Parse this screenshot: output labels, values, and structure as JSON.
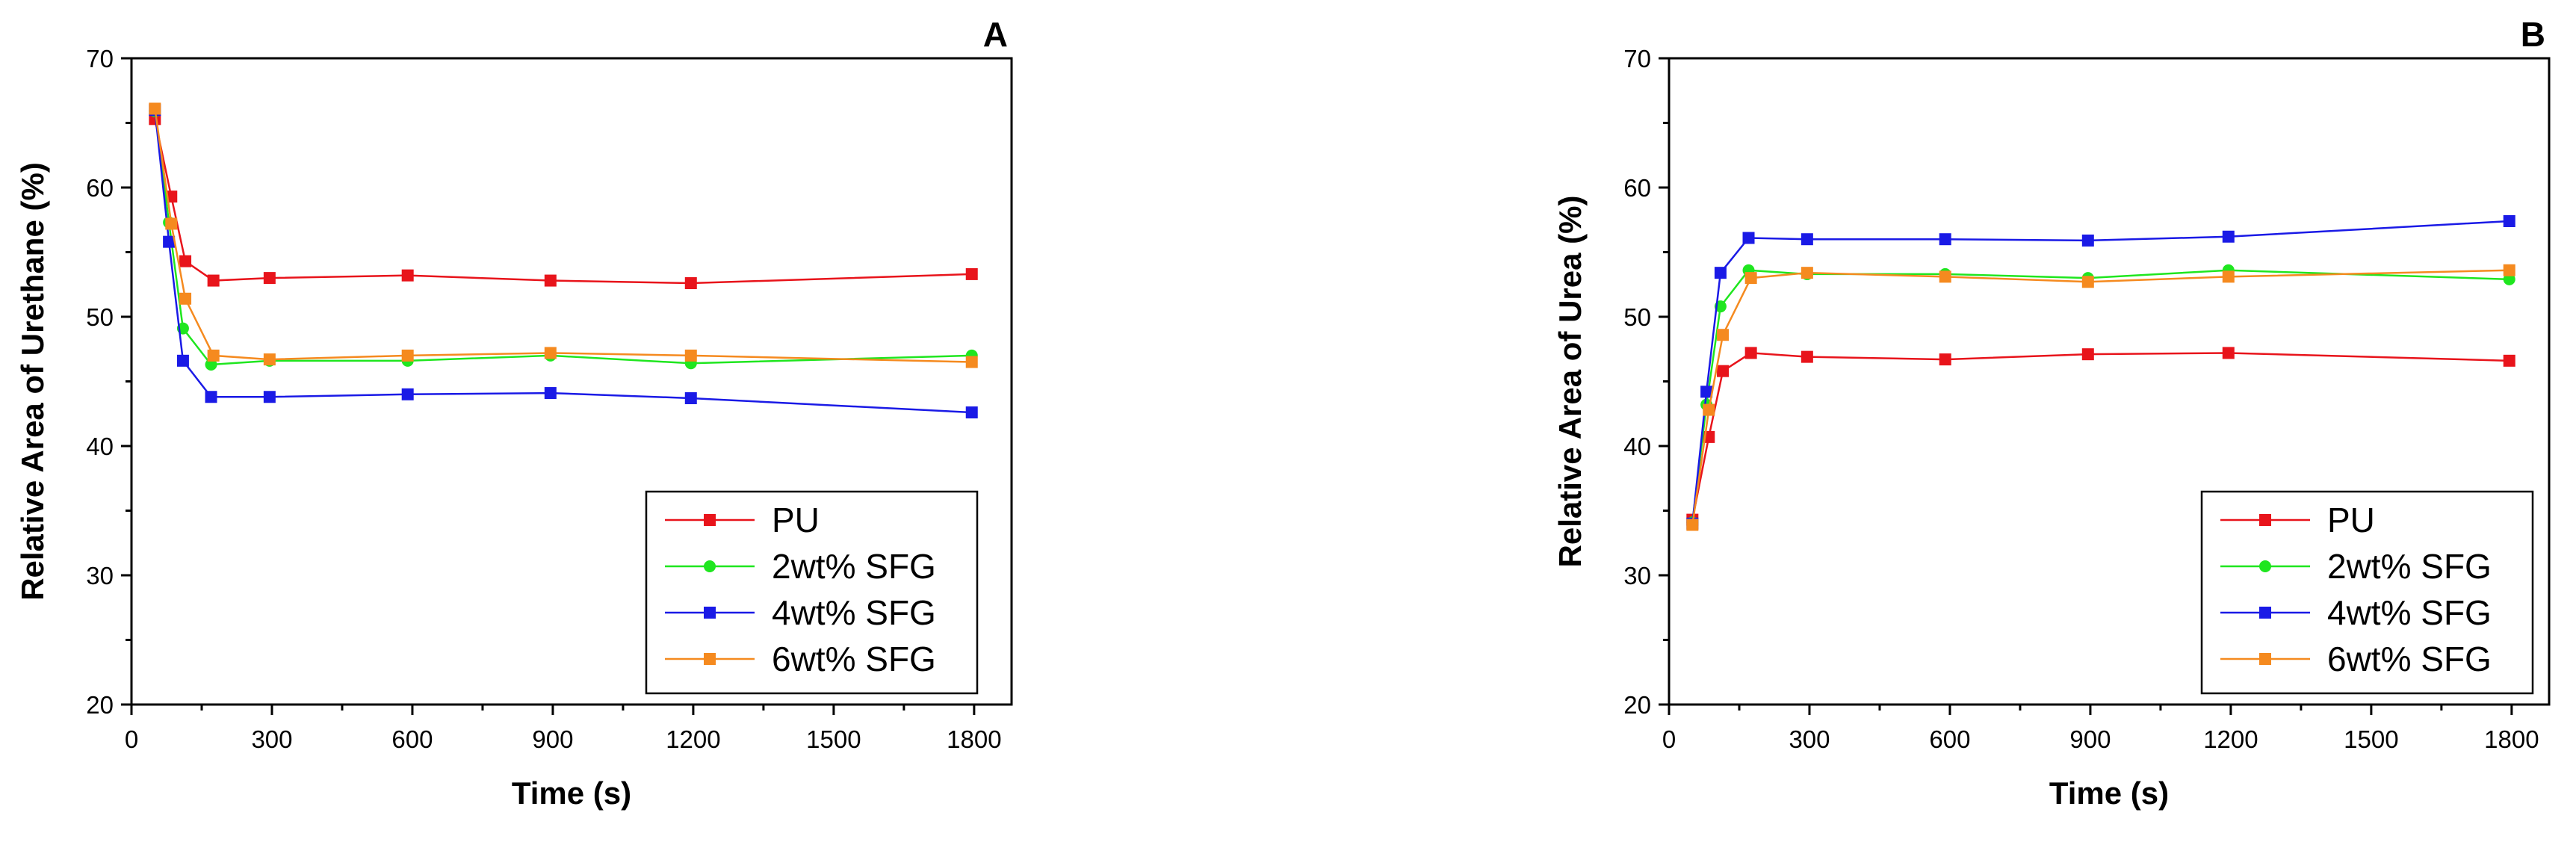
{
  "chart_data": [
    {
      "type": "line",
      "panel_label": "A",
      "xlabel": "Time (s)",
      "ylabel": "Relative Area of Urethane (%)",
      "xlim": [
        0,
        1880
      ],
      "ylim": [
        20,
        70
      ],
      "xticks": [
        "0",
        "300",
        "600",
        "900",
        "1200",
        "1500",
        "1800"
      ],
      "yticks": [
        "20",
        "30",
        "40",
        "50",
        "60",
        "70"
      ],
      "legend_position": "bottom-right",
      "series": [
        {
          "name": "PU",
          "color": "#e8141b",
          "marker": "square",
          "x": [
            50,
            85,
            115,
            175,
            295,
            590,
            895,
            1195,
            1795
          ],
          "y": [
            65.3,
            59.3,
            54.3,
            52.8,
            53.0,
            53.2,
            52.8,
            52.6,
            53.3
          ]
        },
        {
          "name": "2wt% SFG",
          "color": "#1fe61f",
          "marker": "circle",
          "x": [
            50,
            80,
            110,
            170,
            295,
            590,
            895,
            1195,
            1795
          ],
          "y": [
            65.9,
            57.3,
            49.1,
            46.3,
            46.6,
            46.6,
            47.0,
            46.4,
            47.0
          ]
        },
        {
          "name": "4wt% SFG",
          "color": "#1a1ae6",
          "marker": "square",
          "x": [
            50,
            80,
            110,
            170,
            295,
            590,
            895,
            1195,
            1795
          ],
          "y": [
            66.0,
            55.8,
            46.6,
            43.8,
            43.8,
            44.0,
            44.1,
            43.7,
            42.6
          ]
        },
        {
          "name": "6wt% SFG",
          "color": "#f58a1f",
          "marker": "square",
          "x": [
            50,
            85,
            115,
            175,
            295,
            590,
            895,
            1195,
            1795
          ],
          "y": [
            66.1,
            57.2,
            51.4,
            47.0,
            46.7,
            47.0,
            47.2,
            47.0,
            46.5
          ]
        }
      ]
    },
    {
      "type": "line",
      "panel_label": "B",
      "xlabel": "Time (s)",
      "ylabel": "Relative Area of Urea (%)",
      "xlim": [
        0,
        1880
      ],
      "ylim": [
        20,
        70
      ],
      "xticks": [
        "0",
        "300",
        "600",
        "900",
        "1200",
        "1500",
        "1800"
      ],
      "yticks": [
        "20",
        "30",
        "40",
        "50",
        "60",
        "70"
      ],
      "legend_position": "bottom-right",
      "series": [
        {
          "name": "PU",
          "color": "#e8141b",
          "marker": "square",
          "x": [
            50,
            85,
            115,
            175,
            295,
            590,
            895,
            1195,
            1795
          ],
          "y": [
            34.3,
            40.7,
            45.8,
            47.2,
            46.9,
            46.7,
            47.1,
            47.2,
            46.6
          ]
        },
        {
          "name": "2wt% SFG",
          "color": "#1fe61f",
          "marker": "circle",
          "x": [
            50,
            80,
            110,
            170,
            295,
            590,
            895,
            1195,
            1795
          ],
          "y": [
            34.1,
            43.2,
            50.8,
            53.6,
            53.3,
            53.3,
            53.0,
            53.6,
            52.9
          ]
        },
        {
          "name": "4wt% SFG",
          "color": "#1a1ae6",
          "marker": "square",
          "x": [
            50,
            80,
            110,
            170,
            295,
            590,
            895,
            1195,
            1795
          ],
          "y": [
            34.0,
            44.2,
            53.4,
            56.1,
            56.0,
            56.0,
            55.9,
            56.2,
            57.4
          ]
        },
        {
          "name": "6wt% SFG",
          "color": "#f58a1f",
          "marker": "square",
          "x": [
            50,
            85,
            115,
            175,
            295,
            590,
            895,
            1195,
            1795
          ],
          "y": [
            33.9,
            42.8,
            48.6,
            53.0,
            53.4,
            53.1,
            52.7,
            53.1,
            53.6
          ]
        }
      ]
    }
  ]
}
